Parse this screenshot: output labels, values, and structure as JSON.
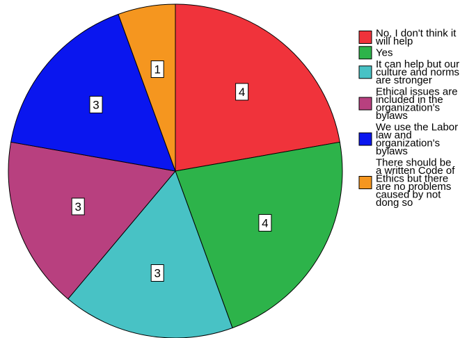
{
  "chart_data": {
    "type": "pie",
    "title": "",
    "start": "12 o'clock, clockwise",
    "slices": [
      {
        "label": "No, I don't think it will help",
        "value": 4,
        "color": "#f0333b"
      },
      {
        "label": "Yes",
        "value": 4,
        "color": "#2db34a"
      },
      {
        "label": "It can help but our culture and norms are stronger",
        "value": 3,
        "color": "#48c2c5"
      },
      {
        "label": "Ethical issues are included in the organization's bylaws",
        "value": 3,
        "color": "#b8407f"
      },
      {
        "label": "We use the Labor law and organization's bylaws",
        "value": 3,
        "color": "#0a16ef"
      },
      {
        "label": "There should be a written Code of Ethics but there are no problems caused by not dong so",
        "value": 1,
        "color": "#f5961f"
      }
    ],
    "legend": {
      "position": "right",
      "entries": [
        {
          "lines": [
            "No, I don't think it",
            "will help"
          ],
          "color": "#f0333b"
        },
        {
          "lines": [
            "Yes"
          ],
          "color": "#2db34a"
        },
        {
          "lines": [
            "It can help but our",
            "culture and norms",
            "are stronger"
          ],
          "color": "#48c2c5"
        },
        {
          "lines": [
            "Ethical issues are",
            "included in the",
            "organization's",
            "bylaws"
          ],
          "color": "#b8407f"
        },
        {
          "lines": [
            "We use the Labor",
            "law and",
            "organization's",
            "bylaws"
          ],
          "color": "#0a16ef"
        },
        {
          "lines": [
            "There should be",
            "a written Code of",
            "Ethics but there",
            "are no problems",
            "caused by not",
            "dong so"
          ],
          "color": "#f5961f"
        }
      ]
    }
  }
}
